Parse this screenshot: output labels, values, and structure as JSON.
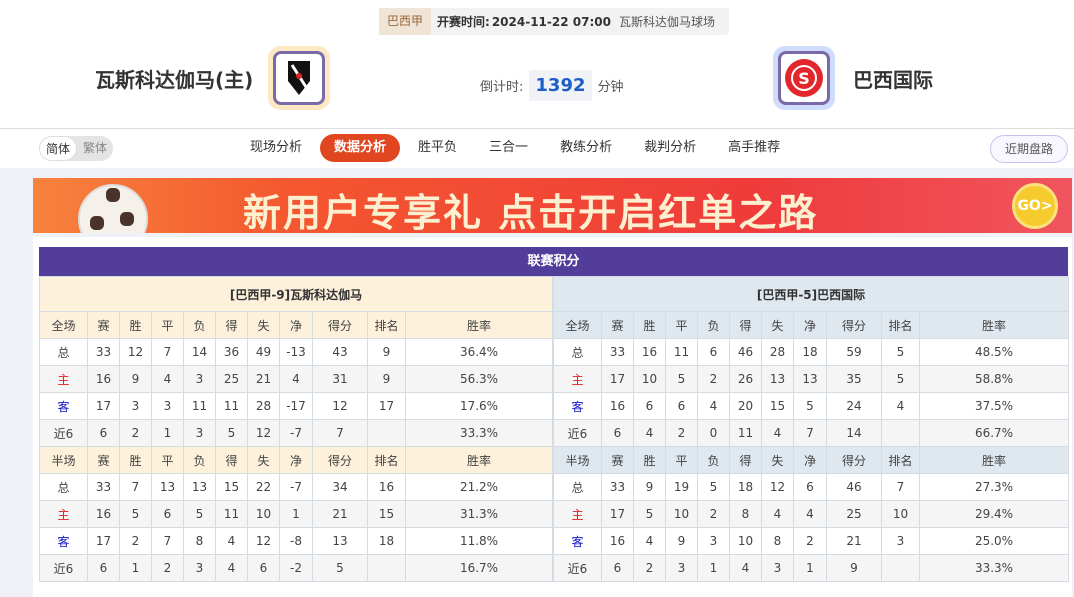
{
  "match": {
    "league": "巴西甲",
    "time_label": "开赛时间:",
    "time": "2024-11-22 07:00",
    "venue": "瓦斯科达伽马球场",
    "home": "瓦斯科达伽马(主)",
    "away": "巴西国际",
    "countdown_label": "倒计时:",
    "countdown": "1392",
    "countdown_unit": "分钟"
  },
  "lang": {
    "simplified": "简体",
    "traditional": "繁体"
  },
  "tabs": [
    {
      "label": "现场分析"
    },
    {
      "label": "数据分析",
      "active": true
    },
    {
      "label": "胜平负"
    },
    {
      "label": "三合一"
    },
    {
      "label": "教练分析"
    },
    {
      "label": "裁判分析"
    },
    {
      "label": "高手推荐"
    }
  ],
  "recent_button": "近期盘路",
  "banner": {
    "text": "新用户专享礼 点击开启红单之路",
    "go": "GO>"
  },
  "standings": {
    "title": "联赛积分",
    "columns_full": [
      "全场",
      "赛",
      "胜",
      "平",
      "负",
      "得",
      "失",
      "净",
      "得分",
      "排名",
      "胜率"
    ],
    "columns_half": [
      "半场",
      "赛",
      "胜",
      "平",
      "负",
      "得",
      "失",
      "净",
      "得分",
      "排名",
      "胜率"
    ],
    "home": {
      "team": "[巴西甲-9]瓦斯科达伽马",
      "full": [
        [
          "总",
          "33",
          "12",
          "7",
          "14",
          "36",
          "49",
          "-13",
          "43",
          "9",
          "36.4%"
        ],
        [
          "主",
          "16",
          "9",
          "4",
          "3",
          "25",
          "21",
          "4",
          "31",
          "9",
          "56.3%"
        ],
        [
          "客",
          "17",
          "3",
          "3",
          "11",
          "11",
          "28",
          "-17",
          "12",
          "17",
          "17.6%"
        ],
        [
          "近6",
          "6",
          "2",
          "1",
          "3",
          "5",
          "12",
          "-7",
          "7",
          "",
          "33.3%"
        ]
      ],
      "half": [
        [
          "总",
          "33",
          "7",
          "13",
          "13",
          "15",
          "22",
          "-7",
          "34",
          "16",
          "21.2%"
        ],
        [
          "主",
          "16",
          "5",
          "6",
          "5",
          "11",
          "10",
          "1",
          "21",
          "15",
          "31.3%"
        ],
        [
          "客",
          "17",
          "2",
          "7",
          "8",
          "4",
          "12",
          "-8",
          "13",
          "18",
          "11.8%"
        ],
        [
          "近6",
          "6",
          "1",
          "2",
          "3",
          "4",
          "6",
          "-2",
          "5",
          "",
          "16.7%"
        ]
      ]
    },
    "away": {
      "team": "[巴西甲-5]巴西国际",
      "full": [
        [
          "总",
          "33",
          "16",
          "11",
          "6",
          "46",
          "28",
          "18",
          "59",
          "5",
          "48.5%"
        ],
        [
          "主",
          "17",
          "10",
          "5",
          "2",
          "26",
          "13",
          "13",
          "35",
          "5",
          "58.8%"
        ],
        [
          "客",
          "16",
          "6",
          "6",
          "4",
          "20",
          "15",
          "5",
          "24",
          "4",
          "37.5%"
        ],
        [
          "近6",
          "6",
          "4",
          "2",
          "0",
          "11",
          "4",
          "7",
          "14",
          "",
          "66.7%"
        ]
      ],
      "half": [
        [
          "总",
          "33",
          "9",
          "19",
          "5",
          "18",
          "12",
          "6",
          "46",
          "7",
          "27.3%"
        ],
        [
          "主",
          "17",
          "5",
          "10",
          "2",
          "8",
          "4",
          "4",
          "25",
          "10",
          "29.4%"
        ],
        [
          "客",
          "16",
          "4",
          "9",
          "3",
          "10",
          "8",
          "2",
          "21",
          "3",
          "25.0%"
        ],
        [
          "近6",
          "6",
          "2",
          "3",
          "1",
          "4",
          "3",
          "1",
          "9",
          "",
          "33.3%"
        ]
      ]
    }
  }
}
